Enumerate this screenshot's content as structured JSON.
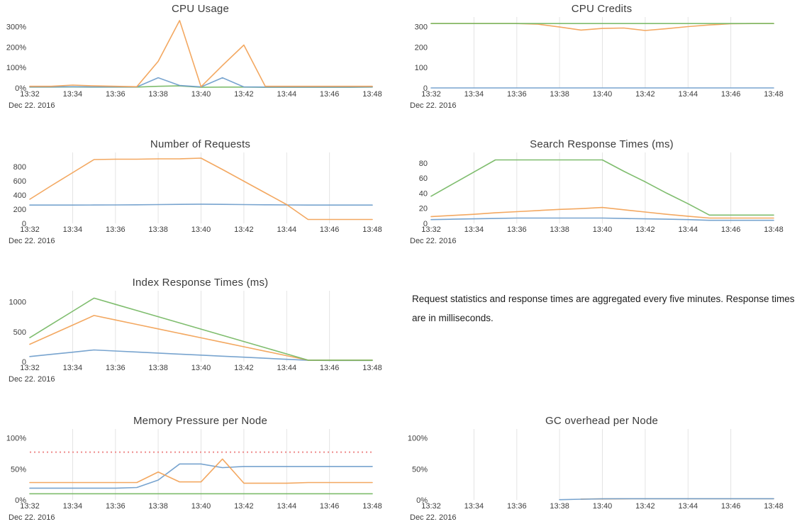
{
  "colors": {
    "blue": "#6D9CCB",
    "orange": "#F2A154",
    "green": "#74B762",
    "threshold_red": "#EE8A8A",
    "grid": "#e4e4e4",
    "title_text": "#3c3c3c",
    "tick_text": "#3d3d3d"
  },
  "x_axis": {
    "tick_labels": [
      "13:32",
      "13:34",
      "13:36",
      "13:38",
      "13:40",
      "13:42",
      "13:44",
      "13:46",
      "13:48"
    ],
    "date_label": "Dec 22. 2016",
    "x_times": [
      "13:32",
      "13:33",
      "13:34",
      "13:35",
      "13:36",
      "13:37",
      "13:38",
      "13:39",
      "13:40",
      "13:41",
      "13:42",
      "13:43",
      "13:44",
      "13:45",
      "13:46",
      "13:47",
      "13:48"
    ]
  },
  "note": {
    "text": "Request statistics and response times are aggregated every five minutes. Response times are in milliseconds."
  },
  "chart_data": [
    {
      "type": "line",
      "title": "CPU Usage",
      "ylim": [
        0,
        340
      ],
      "grid": false,
      "y_ticks": [
        {
          "value": 0,
          "label": "0%"
        },
        {
          "value": 100,
          "label": "100%"
        },
        {
          "value": 200,
          "label": "200%"
        },
        {
          "value": 300,
          "label": "300%"
        }
      ],
      "series": [
        {
          "color": "#74B762",
          "values": [
            4,
            4,
            5,
            4,
            4,
            4,
            8,
            10,
            3,
            4,
            4,
            3,
            3,
            3,
            3,
            3,
            4
          ]
        },
        {
          "color": "#6D9CCB",
          "values": [
            5,
            5,
            6,
            5,
            5,
            5,
            50,
            12,
            5,
            50,
            5,
            4,
            4,
            4,
            4,
            4,
            5
          ]
        },
        {
          "color": "#F2A154",
          "values": [
            8,
            8,
            14,
            10,
            8,
            6,
            130,
            330,
            6,
            110,
            210,
            8,
            8,
            8,
            8,
            8,
            8
          ]
        }
      ]
    },
    {
      "type": "line",
      "title": "CPU Credits",
      "ylim": [
        0,
        340
      ],
      "grid": true,
      "y_ticks": [
        {
          "value": 0,
          "label": "0"
        },
        {
          "value": 100,
          "label": "100"
        },
        {
          "value": 200,
          "label": "200"
        },
        {
          "value": 300,
          "label": "300"
        }
      ],
      "series": [
        {
          "color": "#6D9CCB",
          "values": [
            0,
            0,
            0,
            0,
            0,
            0,
            0,
            0,
            0,
            0,
            0,
            0,
            0,
            0,
            0,
            0,
            0
          ]
        },
        {
          "color": "#F2A154",
          "values": [
            315,
            315,
            315,
            315,
            315,
            312,
            298,
            283,
            291,
            293,
            281,
            290,
            300,
            308,
            314,
            315,
            315
          ]
        },
        {
          "color": "#74B762",
          "values": [
            315,
            315,
            315,
            315,
            315,
            315,
            315,
            315,
            315,
            315,
            315,
            315,
            315,
            315,
            315,
            315,
            315
          ]
        }
      ]
    },
    {
      "type": "line",
      "title": "Number of Requests",
      "ylim": [
        0,
        980
      ],
      "grid": true,
      "y_ticks": [
        {
          "value": 0,
          "label": "0"
        },
        {
          "value": 200,
          "label": "200"
        },
        {
          "value": 400,
          "label": "400"
        },
        {
          "value": 600,
          "label": "600"
        },
        {
          "value": 800,
          "label": "800"
        }
      ],
      "series": [
        {
          "color": "#6D9CCB",
          "values": [
            258,
            258,
            258,
            259,
            260,
            262,
            265,
            268,
            271,
            268,
            265,
            262,
            260,
            258,
            258,
            258,
            258
          ]
        },
        {
          "color": "#F2A154",
          "values": [
            340,
            530,
            715,
            900,
            905,
            905,
            910,
            910,
            920,
            760,
            595,
            430,
            265,
            55,
            55,
            55,
            55
          ]
        }
      ]
    },
    {
      "type": "line",
      "title": "Search Response Times (ms)",
      "ylim": [
        0,
        92
      ],
      "grid": true,
      "y_ticks": [
        {
          "value": 0,
          "label": "0"
        },
        {
          "value": 20,
          "label": "20"
        },
        {
          "value": 40,
          "label": "40"
        },
        {
          "value": 60,
          "label": "60"
        },
        {
          "value": 80,
          "label": "80"
        }
      ],
      "series": [
        {
          "color": "#6D9CCB",
          "values": [
            5,
            5.5,
            6,
            6.5,
            7,
            7,
            7,
            7,
            7,
            6.5,
            6,
            5.5,
            5,
            4,
            4,
            4,
            4
          ]
        },
        {
          "color": "#F2A154",
          "values": [
            9,
            10.5,
            12,
            14,
            15.5,
            17,
            18.5,
            19.5,
            21,
            18,
            15,
            12,
            9.5,
            7,
            7,
            7,
            7
          ]
        },
        {
          "color": "#74B762",
          "values": [
            36,
            52,
            68,
            84,
            84,
            84,
            84,
            84,
            84,
            69,
            55,
            40,
            26,
            11,
            11,
            11,
            11
          ]
        }
      ]
    },
    {
      "type": "line",
      "title": "Index Response Times (ms)",
      "ylim": [
        0,
        1160
      ],
      "grid": true,
      "y_ticks": [
        {
          "value": 0,
          "label": "0"
        },
        {
          "value": 500,
          "label": "500"
        },
        {
          "value": 1000,
          "label": "1000"
        }
      ],
      "series": [
        {
          "color": "#6D9CCB",
          "values": [
            85,
            122,
            158,
            195,
            178,
            161,
            143,
            126,
            109,
            91,
            74,
            57,
            39,
            22,
            20,
            20,
            20
          ]
        },
        {
          "color": "#F2A154",
          "values": [
            290,
            450,
            610,
            770,
            696,
            621,
            547,
            472,
            398,
            323,
            249,
            174,
            100,
            25,
            25,
            25,
            25
          ]
        },
        {
          "color": "#74B762",
          "values": [
            400,
            620,
            840,
            1060,
            957,
            853,
            750,
            646,
            543,
            439,
            336,
            232,
            129,
            25,
            25,
            25,
            25
          ]
        }
      ]
    },
    {
      "type": "line",
      "title": "Memory Pressure per Node",
      "ylim": [
        0,
        112
      ],
      "grid": true,
      "threshold": {
        "value": 77,
        "color": "#EE8A8A"
      },
      "y_ticks": [
        {
          "value": 0,
          "label": "0%"
        },
        {
          "value": 50,
          "label": "50%"
        },
        {
          "value": 100,
          "label": "100%"
        }
      ],
      "series": [
        {
          "color": "#6D9CCB",
          "values": [
            19,
            19,
            19,
            19,
            19,
            20,
            32,
            58,
            58,
            52,
            54,
            54,
            54,
            54,
            54,
            54,
            54
          ]
        },
        {
          "color": "#F2A154",
          "values": [
            28,
            28,
            28,
            28,
            28,
            28,
            45,
            29,
            29,
            66,
            27,
            27,
            27,
            28,
            28,
            28,
            28
          ]
        },
        {
          "color": "#74B762",
          "values": [
            10,
            10,
            10,
            10,
            10,
            10,
            10,
            10,
            10,
            10,
            10,
            10,
            10,
            10,
            10,
            10,
            10
          ]
        }
      ]
    },
    {
      "type": "line",
      "title": "GC overhead per Node",
      "ylim": [
        0,
        112
      ],
      "grid": true,
      "y_ticks": [
        {
          "value": 0,
          "label": "0%"
        },
        {
          "value": 50,
          "label": "50%"
        },
        {
          "value": 100,
          "label": "100%"
        }
      ],
      "series": [
        {
          "color": "#F2A154",
          "values": [
            null,
            null,
            null,
            null,
            null,
            null,
            null,
            1.4,
            1.6,
            1.8,
            2,
            2,
            2,
            2,
            2,
            2,
            2
          ]
        },
        {
          "color": "#6D9CCB",
          "values": [
            null,
            null,
            null,
            null,
            null,
            null,
            0.3,
            1.2,
            1.8,
            2,
            2,
            2,
            2,
            2,
            2,
            2,
            2
          ]
        }
      ]
    }
  ]
}
